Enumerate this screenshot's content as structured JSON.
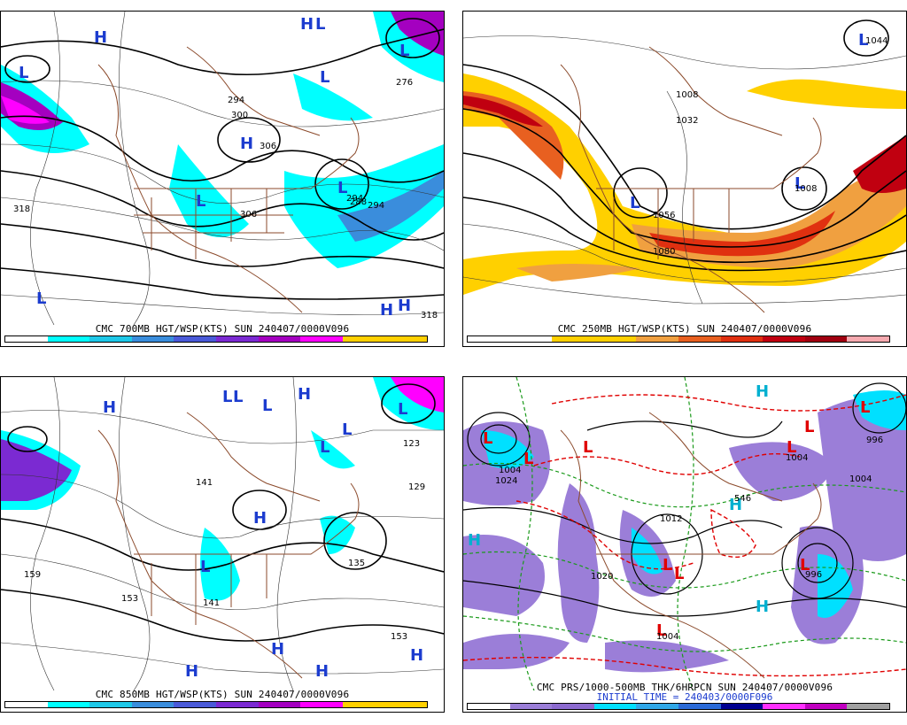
{
  "panels": [
    {
      "id": "p700",
      "caption": "CMC 700MB HGT/WSP(KTS) SUN 240407/0000V096",
      "colorbar": {
        "colors": [
          "#ffffff",
          "#00ffff",
          "#1ec8e8",
          "#3a8ddc",
          "#4a5ad8",
          "#7b2ad2",
          "#a400c0",
          "#ff00ff",
          "#ffd000",
          "#ffd000"
        ],
        "ticks": [
          "30",
          "40",
          "50",
          "60",
          "70"
        ]
      },
      "hl_labels": [
        {
          "t": "H",
          "c": "#1c3ccf"
        },
        {
          "t": "L",
          "c": "#1c3ccf"
        },
        {
          "t": "H",
          "c": "#1c3ccf"
        },
        {
          "t": "L",
          "c": "#1c3ccf"
        },
        {
          "t": "L",
          "c": "#1c3ccf"
        },
        {
          "t": "H",
          "c": "#1c3ccf"
        },
        {
          "t": "L",
          "c": "#1c3ccf"
        },
        {
          "t": "L",
          "c": "#1c3ccf"
        },
        {
          "t": "L",
          "c": "#1c3ccf"
        },
        {
          "t": "H",
          "c": "#1c3ccf"
        },
        {
          "t": "H",
          "c": "#1c3ccf"
        },
        {
          "t": "L",
          "c": "#1c3ccf"
        }
      ],
      "contour_labels": [
        "318",
        "276",
        "294",
        "300",
        "306",
        "306",
        "294",
        "288",
        "294",
        "318"
      ]
    },
    {
      "id": "p250",
      "caption": "CMC 250MB HGT/WSP(KTS) SUN 240407/0000V096",
      "colorbar": {
        "colors": [
          "#ffffff",
          "#ffffff",
          "#ffd000",
          "#ffd000",
          "#f0a040",
          "#e86020",
          "#e03010",
          "#c00010",
          "#a00010",
          "#f6aab0"
        ],
        "ticks": [
          "70",
          "90",
          "110",
          "130",
          "150"
        ]
      },
      "hl_labels": [
        {
          "t": "L",
          "c": "#1c3ccf"
        },
        {
          "t": "L",
          "c": "#1c3ccf"
        },
        {
          "t": "L",
          "c": "#1c3ccf"
        }
      ],
      "contour_labels": [
        "1008",
        "1032",
        "1008",
        "1056",
        "1080",
        "1044"
      ]
    },
    {
      "id": "p850",
      "caption": "CMC 850MB HGT/WSP(KTS) SUN 240407/0000V096",
      "colorbar": {
        "colors": [
          "#ffffff",
          "#00ffff",
          "#1ec8e8",
          "#3a8ddc",
          "#4a5ad8",
          "#7b2ad2",
          "#a400c0",
          "#ff00ff",
          "#ffd000",
          "#ffd000"
        ],
        "ticks": [
          "30",
          "40",
          "50",
          "60",
          "70"
        ]
      },
      "hl_labels": [
        {
          "t": "H",
          "c": "#1c3ccf"
        },
        {
          "t": "L",
          "c": "#1c3ccf"
        },
        {
          "t": "L",
          "c": "#1c3ccf"
        },
        {
          "t": "L",
          "c": "#1c3ccf"
        },
        {
          "t": "H",
          "c": "#1c3ccf"
        },
        {
          "t": "L",
          "c": "#1c3ccf"
        },
        {
          "t": "L",
          "c": "#1c3ccf"
        },
        {
          "t": "H",
          "c": "#1c3ccf"
        },
        {
          "t": "L",
          "c": "#1c3ccf"
        },
        {
          "t": "H",
          "c": "#1c3ccf"
        },
        {
          "t": "H",
          "c": "#1c3ccf"
        },
        {
          "t": "H",
          "c": "#1c3ccf"
        },
        {
          "t": "H",
          "c": "#1c3ccf"
        },
        {
          "t": "L",
          "c": "#1c3ccf"
        }
      ],
      "contour_labels": [
        "123",
        "129",
        "141",
        "159",
        "153",
        "135",
        "153",
        "141"
      ]
    },
    {
      "id": "pprs",
      "caption": "CMC PRS/1000-500MB THK/6HRPCN SUN 240407/0000V096",
      "subcaption": "INITIAL TIME = 240403/0000F096",
      "colorbar": {
        "colors": [
          "#ffffff",
          "#9b7ed8",
          "#8c6ad0",
          "#00e0ff",
          "#30a8e8",
          "#2a6ad8",
          "#000090",
          "#ff30ff",
          "#c000c0",
          "#a0a0a0"
        ],
        "ticks": [
          "1",
          "10",
          "25",
          "50",
          "75",
          "100",
          "125",
          "150",
          "175",
          "200",
          "300",
          "400"
        ]
      },
      "hl_labels": [
        {
          "t": "L",
          "c": "#e00000"
        },
        {
          "t": "L",
          "c": "#e00000"
        },
        {
          "t": "L",
          "c": "#e00000"
        },
        {
          "t": "L",
          "c": "#e00000"
        },
        {
          "t": "L",
          "c": "#e00000"
        },
        {
          "t": "L",
          "c": "#e00000"
        },
        {
          "t": "L",
          "c": "#e00000"
        },
        {
          "t": "L",
          "c": "#e00000"
        },
        {
          "t": "L",
          "c": "#e00000"
        },
        {
          "t": "H",
          "c": "#00b0d0"
        },
        {
          "t": "H",
          "c": "#00b0d0"
        },
        {
          "t": "H",
          "c": "#00b0d0"
        },
        {
          "t": "H",
          "c": "#00b0d0"
        },
        {
          "t": "L",
          "c": "#e00000"
        }
      ],
      "contour_labels": [
        "1004",
        "996",
        "1004",
        "996",
        "1024",
        "1012",
        "546",
        "1020",
        "1004",
        "1004"
      ]
    }
  ]
}
